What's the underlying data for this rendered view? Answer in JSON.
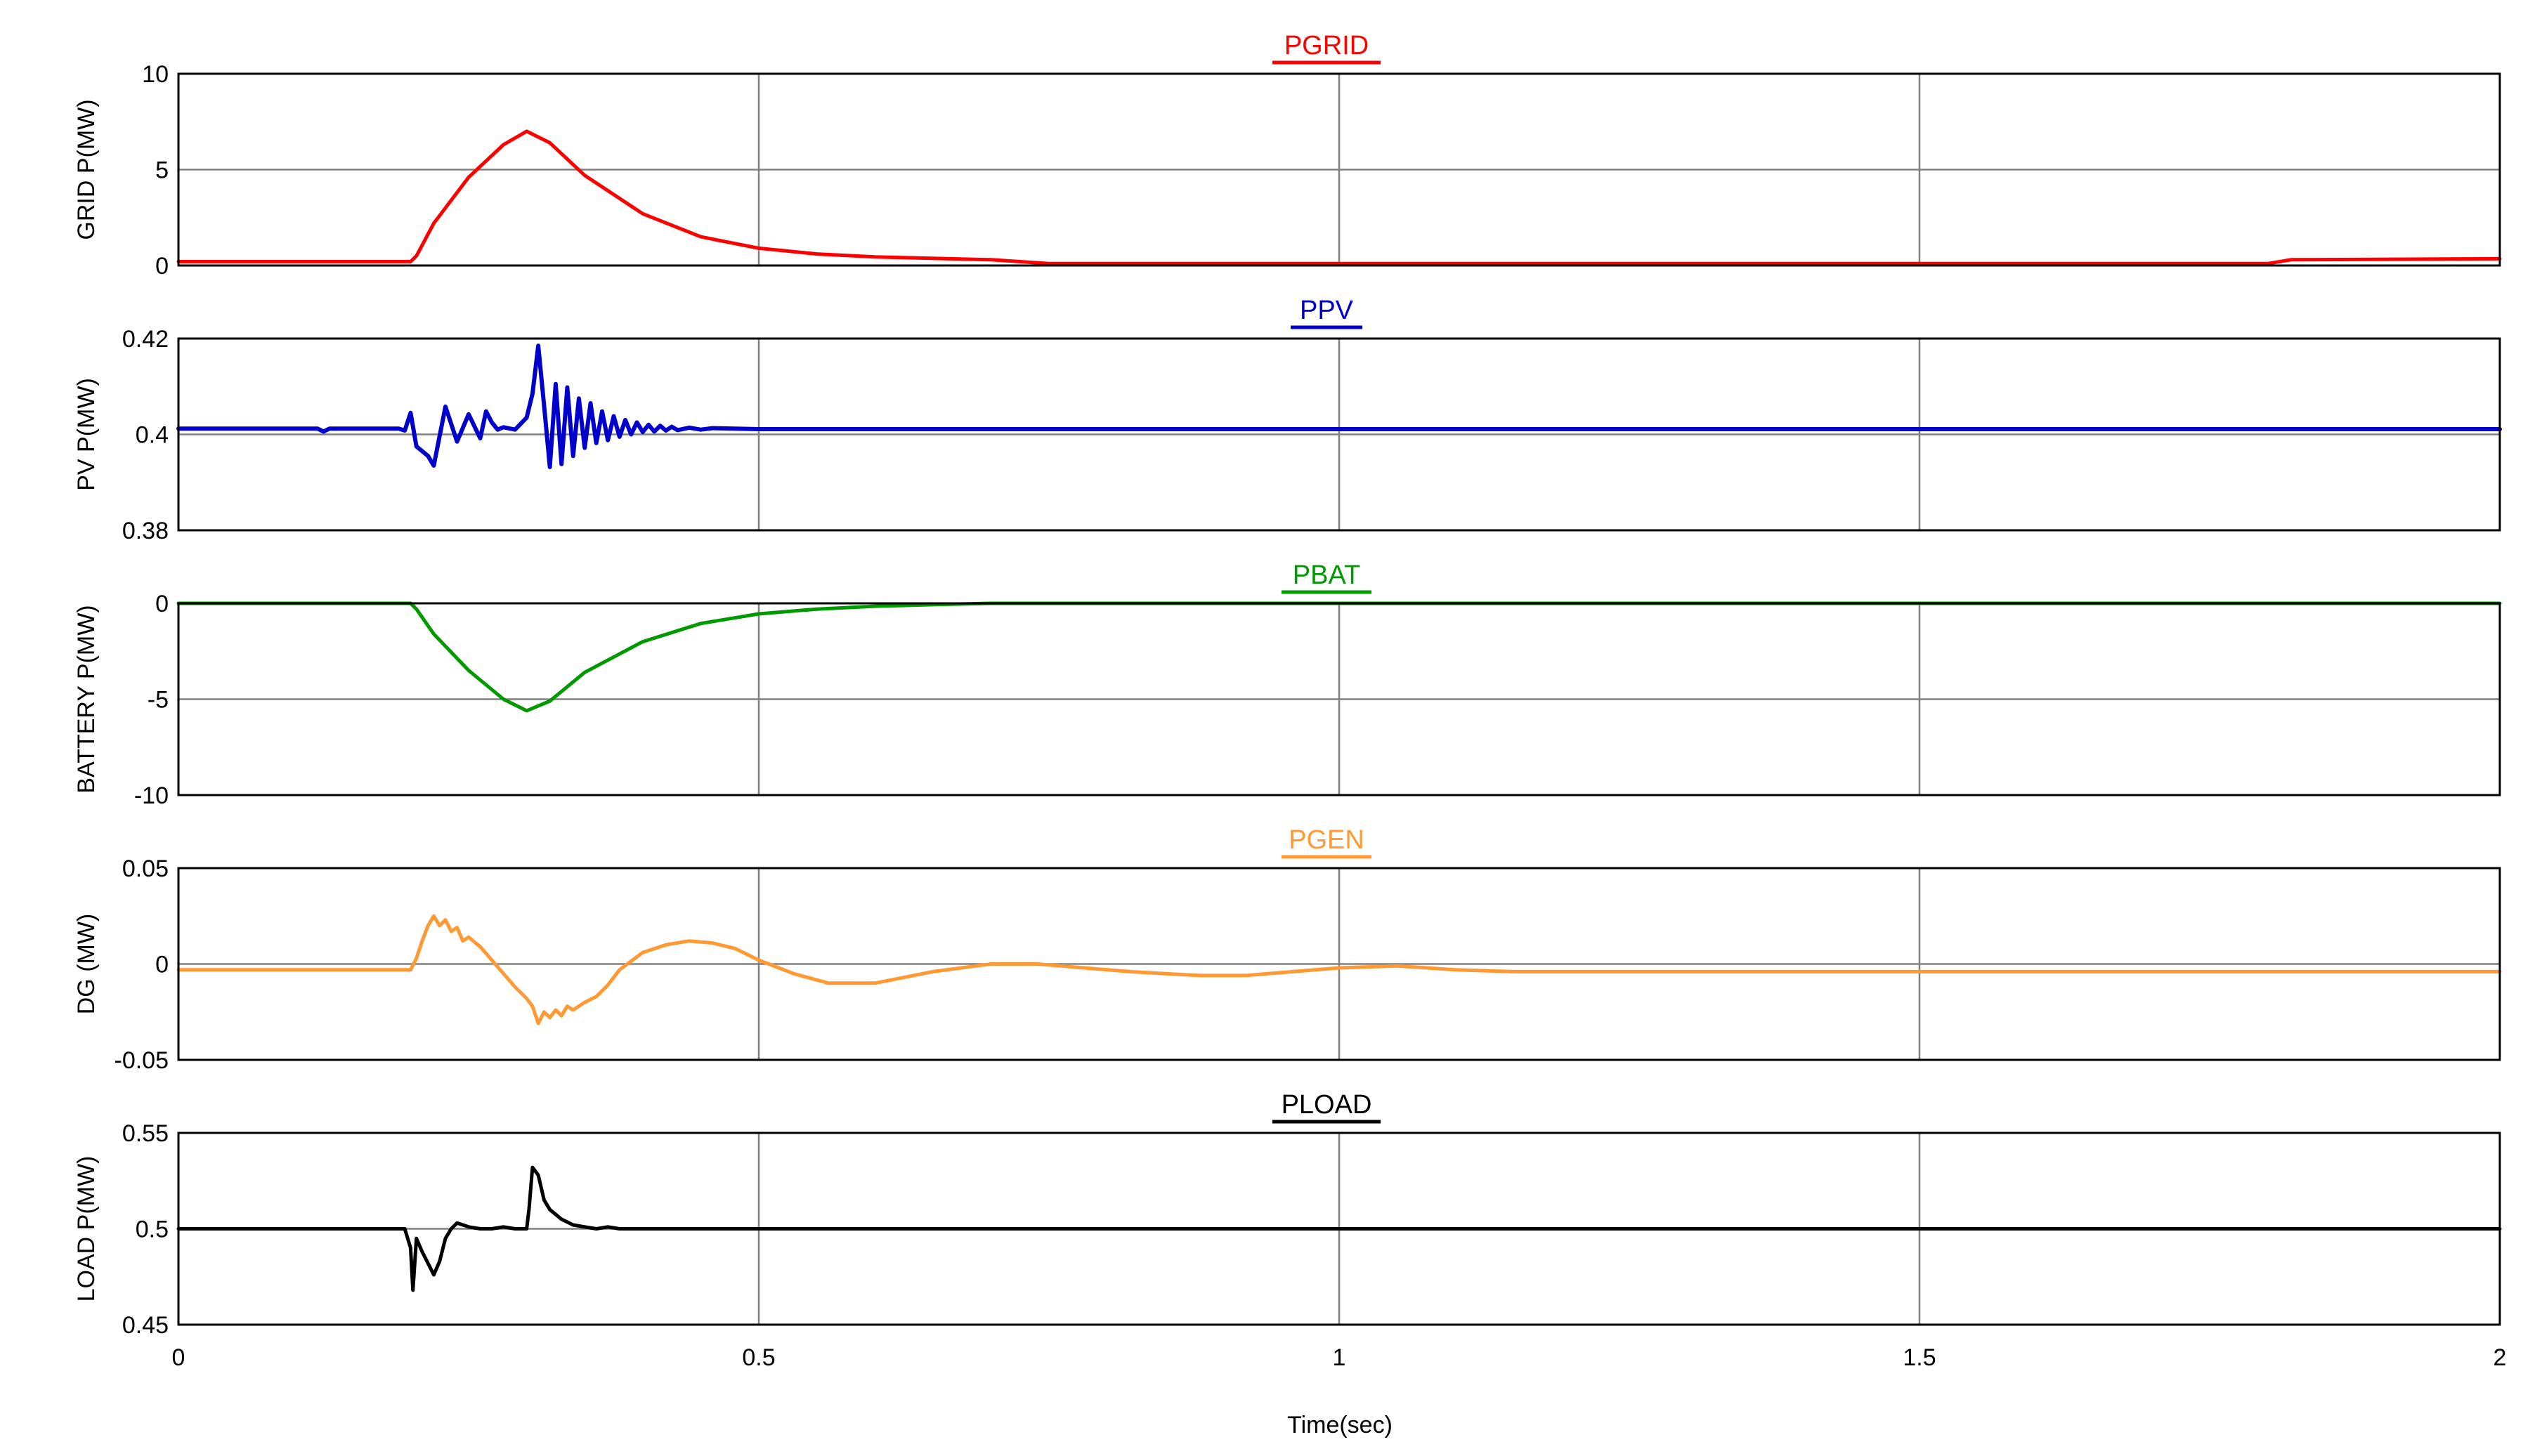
{
  "chart_data": {
    "type": "line",
    "xlabel": "Time(sec)",
    "xlim": [
      0,
      2
    ],
    "xticks": [
      0,
      0.5,
      1,
      1.5,
      2
    ],
    "xtick_labels": [
      "0",
      "0.5",
      "1",
      "1.5",
      "2"
    ],
    "grid": true,
    "panels": [
      {
        "title": "PGRID",
        "ylabel": "GRID P(MW)",
        "color": "#ff0000",
        "ylim": [
          0,
          10
        ],
        "yticks": [
          0,
          5,
          10
        ],
        "ytick_labels": [
          "0",
          "5",
          "10"
        ],
        "series": [
          {
            "name": "PGRID",
            "x": [
              0,
              0.2,
              0.205,
              0.22,
              0.25,
              0.28,
              0.3,
              0.32,
              0.35,
              0.4,
              0.45,
              0.5,
              0.55,
              0.6,
              0.7,
              0.75,
              0.8,
              1.0,
              1.5,
              1.8,
              1.82,
              2.0
            ],
            "y": [
              0.2,
              0.2,
              0.5,
              2.2,
              4.6,
              6.3,
              7.0,
              6.4,
              4.7,
              2.7,
              1.5,
              0.9,
              0.6,
              0.45,
              0.3,
              0.1,
              0.1,
              0.1,
              0.1,
              0.1,
              0.3,
              0.35
            ]
          }
        ]
      },
      {
        "title": "PPV",
        "ylabel": "PV P(MW)",
        "color": "#0000cc",
        "ylim": [
          0.38,
          0.42
        ],
        "yticks": [
          0.38,
          0.4,
          0.42
        ],
        "ytick_labels": [
          "0.38",
          "0.4",
          "0.42"
        ],
        "series": [
          {
            "name": "PPV",
            "x": [
              0,
              0.12,
              0.125,
              0.13,
              0.19,
              0.195,
              0.2,
              0.205,
              0.215,
              0.22,
              0.23,
              0.24,
              0.25,
              0.26,
              0.265,
              0.27,
              0.275,
              0.28,
              0.29,
              0.3,
              0.305,
              0.31,
              0.315,
              0.32,
              0.325,
              0.33,
              0.335,
              0.34,
              0.345,
              0.35,
              0.355,
              0.36,
              0.365,
              0.37,
              0.375,
              0.38,
              0.385,
              0.39,
              0.395,
              0.4,
              0.405,
              0.41,
              0.415,
              0.42,
              0.425,
              0.43,
              0.44,
              0.45,
              0.46,
              0.5,
              1.0,
              2.0
            ],
            "y": [
              0.4012,
              0.4012,
              0.4006,
              0.4012,
              0.4012,
              0.4008,
              0.4045,
              0.3975,
              0.3955,
              0.3935,
              0.4058,
              0.3985,
              0.4042,
              0.3992,
              0.4048,
              0.4025,
              0.401,
              0.4015,
              0.401,
              0.4035,
              0.4085,
              0.4185,
              0.406,
              0.3932,
              0.4105,
              0.3938,
              0.4098,
              0.3955,
              0.4075,
              0.3972,
              0.4065,
              0.3982,
              0.4048,
              0.3988,
              0.4038,
              0.3995,
              0.403,
              0.4,
              0.4025,
              0.4005,
              0.402,
              0.4006,
              0.4018,
              0.4008,
              0.4016,
              0.4009,
              0.4014,
              0.401,
              0.4013,
              0.4011,
              0.4011,
              0.4011
            ]
          }
        ]
      },
      {
        "title": "PBAT",
        "ylabel": "BATTERY P(MW)",
        "color": "#009900",
        "ylim": [
          -10,
          0
        ],
        "yticks": [
          -10,
          -5,
          0
        ],
        "ytick_labels": [
          "-10",
          "-5",
          "0"
        ],
        "series": [
          {
            "name": "PBAT",
            "x": [
              0,
              0.2,
              0.205,
              0.22,
              0.25,
              0.28,
              0.3,
              0.32,
              0.35,
              0.4,
              0.45,
              0.5,
              0.55,
              0.6,
              0.65,
              0.7,
              2.0
            ],
            "y": [
              0,
              0,
              -0.3,
              -1.6,
              -3.5,
              -5.0,
              -5.6,
              -5.1,
              -3.6,
              -2.0,
              -1.05,
              -0.55,
              -0.3,
              -0.15,
              -0.07,
              0,
              0
            ]
          }
        ]
      },
      {
        "title": "PGEN",
        "ylabel": "DG (MW)",
        "color": "#ff9933",
        "ylim": [
          -0.05,
          0.05
        ],
        "yticks": [
          -0.05,
          0,
          0.05
        ],
        "ytick_labels": [
          "-0.05",
          "0",
          "0.05"
        ],
        "series": [
          {
            "name": "PGEN",
            "x": [
              0,
              0.2,
              0.205,
              0.21,
              0.215,
              0.22,
              0.225,
              0.23,
              0.235,
              0.24,
              0.245,
              0.25,
              0.26,
              0.27,
              0.28,
              0.29,
              0.3,
              0.305,
              0.31,
              0.315,
              0.32,
              0.325,
              0.33,
              0.335,
              0.34,
              0.35,
              0.36,
              0.37,
              0.38,
              0.4,
              0.42,
              0.44,
              0.46,
              0.48,
              0.5,
              0.53,
              0.56,
              0.6,
              0.65,
              0.7,
              0.74,
              0.78,
              0.82,
              0.85,
              0.88,
              0.92,
              0.96,
              1.0,
              1.05,
              1.1,
              1.15,
              1.2,
              1.5,
              2.0
            ],
            "y": [
              -0.003,
              -0.003,
              0.003,
              0.012,
              0.02,
              0.025,
              0.02,
              0.023,
              0.017,
              0.019,
              0.012,
              0.014,
              0.009,
              0.002,
              -0.005,
              -0.012,
              -0.018,
              -0.022,
              -0.031,
              -0.025,
              -0.028,
              -0.024,
              -0.027,
              -0.022,
              -0.024,
              -0.02,
              -0.017,
              -0.011,
              -0.003,
              0.006,
              0.01,
              0.012,
              0.011,
              0.008,
              0.002,
              -0.005,
              -0.01,
              -0.01,
              -0.004,
              0.0,
              0.0,
              -0.002,
              -0.004,
              -0.005,
              -0.006,
              -0.006,
              -0.004,
              -0.002,
              -0.001,
              -0.003,
              -0.004,
              -0.004,
              -0.004,
              -0.004
            ]
          }
        ]
      },
      {
        "title": "PLOAD",
        "ylabel": "LOAD P(MW)",
        "color": "#000000",
        "ylim": [
          0.45,
          0.55
        ],
        "yticks": [
          0.45,
          0.5,
          0.55
        ],
        "ytick_labels": [
          "0.45",
          "0.5",
          "0.55"
        ],
        "series": [
          {
            "name": "PLOAD",
            "x": [
              0,
              0.195,
              0.2,
              0.202,
              0.205,
              0.21,
              0.215,
              0.22,
              0.225,
              0.23,
              0.235,
              0.24,
              0.25,
              0.26,
              0.27,
              0.28,
              0.29,
              0.3,
              0.302,
              0.305,
              0.31,
              0.315,
              0.32,
              0.33,
              0.34,
              0.35,
              0.36,
              0.37,
              0.38,
              2.0
            ],
            "y": [
              0.5,
              0.5,
              0.49,
              0.468,
              0.495,
              0.488,
              0.482,
              0.476,
              0.483,
              0.495,
              0.5,
              0.503,
              0.501,
              0.5,
              0.5,
              0.501,
              0.5,
              0.5,
              0.51,
              0.532,
              0.528,
              0.515,
              0.51,
              0.505,
              0.502,
              0.501,
              0.5,
              0.501,
              0.5,
              0.5
            ]
          }
        ]
      }
    ]
  }
}
